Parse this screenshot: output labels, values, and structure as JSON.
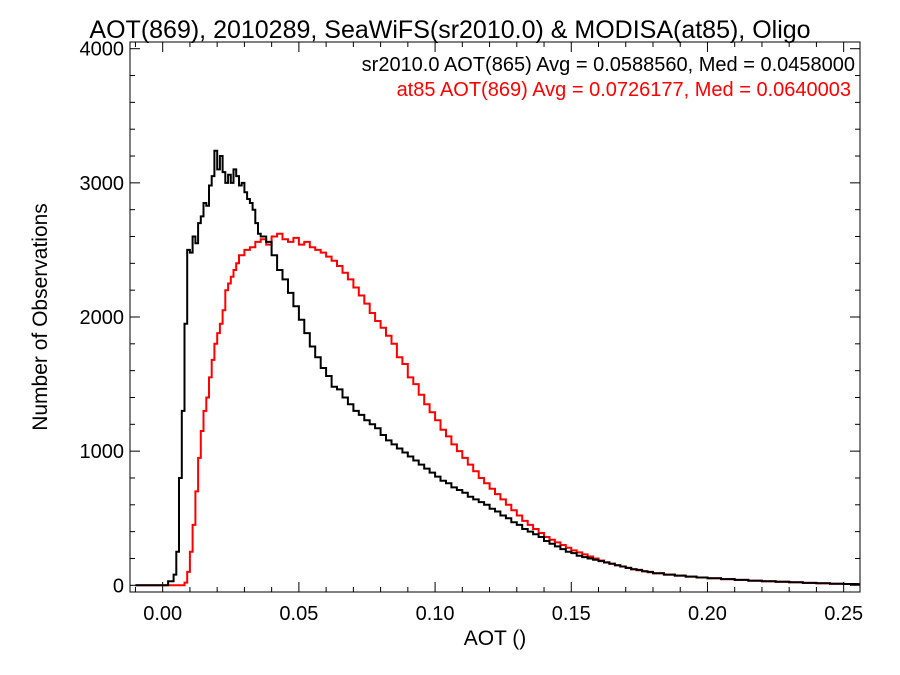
{
  "chart_data": {
    "type": "line",
    "title": "AOT(869), 2010289, SeaWiFS(sr2010.0) & MODISA(at85), Oligo",
    "xlabel": "AOT ()",
    "ylabel": "Number of Observations",
    "xlim": [
      -0.012,
      0.256
    ],
    "ylim": [
      -50,
      4050
    ],
    "x_ticks": [
      0.0,
      0.05,
      0.1,
      0.15,
      0.2,
      0.25
    ],
    "x_tick_labels": [
      "0.00",
      "0.05",
      "0.10",
      "0.15",
      "0.20",
      "0.25"
    ],
    "y_ticks": [
      0,
      1000,
      2000,
      3000,
      4000
    ],
    "y_tick_labels": [
      "0",
      "1000",
      "2000",
      "3000",
      "4000"
    ],
    "grid": false,
    "legend_placement": "top-right",
    "series": [
      {
        "name": "sr2010.0 AOT(865)",
        "legend_text": "sr2010.0 AOT(865) Avg = 0.0588560, Med = 0.0458000",
        "color": "#000000",
        "points": [
          [
            -0.01,
            0
          ],
          [
            0.0,
            0
          ],
          [
            0.002,
            30
          ],
          [
            0.004,
            80
          ],
          [
            0.005,
            250
          ],
          [
            0.006,
            800
          ],
          [
            0.007,
            1300
          ],
          [
            0.008,
            1950
          ],
          [
            0.009,
            2500
          ],
          [
            0.01,
            2480
          ],
          [
            0.011,
            2600
          ],
          [
            0.012,
            2550
          ],
          [
            0.013,
            2700
          ],
          [
            0.014,
            2750
          ],
          [
            0.015,
            2850
          ],
          [
            0.016,
            2830
          ],
          [
            0.017,
            2980
          ],
          [
            0.018,
            3050
          ],
          [
            0.019,
            3240
          ],
          [
            0.02,
            3100
          ],
          [
            0.021,
            3200
          ],
          [
            0.022,
            3080
          ],
          [
            0.023,
            3000
          ],
          [
            0.024,
            3060
          ],
          [
            0.025,
            3000
          ],
          [
            0.026,
            3100
          ],
          [
            0.027,
            3050
          ],
          [
            0.028,
            2980
          ],
          [
            0.029,
            3000
          ],
          [
            0.03,
            2930
          ],
          [
            0.031,
            2880
          ],
          [
            0.032,
            2850
          ],
          [
            0.033,
            2800
          ],
          [
            0.034,
            2700
          ],
          [
            0.035,
            2620
          ],
          [
            0.036,
            2600
          ],
          [
            0.038,
            2560
          ],
          [
            0.04,
            2460
          ],
          [
            0.042,
            2350
          ],
          [
            0.044,
            2280
          ],
          [
            0.046,
            2180
          ],
          [
            0.048,
            2080
          ],
          [
            0.05,
            1980
          ],
          [
            0.052,
            1880
          ],
          [
            0.054,
            1780
          ],
          [
            0.056,
            1700
          ],
          [
            0.058,
            1620
          ],
          [
            0.06,
            1560
          ],
          [
            0.062,
            1480
          ],
          [
            0.064,
            1460
          ],
          [
            0.066,
            1400
          ],
          [
            0.068,
            1350
          ],
          [
            0.07,
            1300
          ],
          [
            0.072,
            1270
          ],
          [
            0.074,
            1230
          ],
          [
            0.076,
            1200
          ],
          [
            0.078,
            1170
          ],
          [
            0.08,
            1120
          ],
          [
            0.082,
            1080
          ],
          [
            0.084,
            1050
          ],
          [
            0.086,
            1020
          ],
          [
            0.088,
            990
          ],
          [
            0.09,
            960
          ],
          [
            0.092,
            930
          ],
          [
            0.094,
            900
          ],
          [
            0.096,
            870
          ],
          [
            0.098,
            840
          ],
          [
            0.1,
            810
          ],
          [
            0.102,
            780
          ],
          [
            0.104,
            760
          ],
          [
            0.106,
            730
          ],
          [
            0.108,
            710
          ],
          [
            0.11,
            690
          ],
          [
            0.112,
            660
          ],
          [
            0.114,
            640
          ],
          [
            0.116,
            620
          ],
          [
            0.118,
            600
          ],
          [
            0.12,
            570
          ],
          [
            0.122,
            550
          ],
          [
            0.124,
            520
          ],
          [
            0.126,
            500
          ],
          [
            0.128,
            470
          ],
          [
            0.13,
            450
          ],
          [
            0.132,
            420
          ],
          [
            0.134,
            400
          ],
          [
            0.136,
            380
          ],
          [
            0.138,
            360
          ],
          [
            0.14,
            330
          ],
          [
            0.142,
            310
          ],
          [
            0.144,
            290
          ],
          [
            0.146,
            270
          ],
          [
            0.148,
            250
          ],
          [
            0.15,
            240
          ],
          [
            0.152,
            220
          ],
          [
            0.154,
            210
          ],
          [
            0.156,
            200
          ],
          [
            0.158,
            190
          ],
          [
            0.16,
            180
          ],
          [
            0.162,
            170
          ],
          [
            0.164,
            160
          ],
          [
            0.166,
            150
          ],
          [
            0.168,
            140
          ],
          [
            0.17,
            130
          ],
          [
            0.172,
            120
          ],
          [
            0.174,
            115
          ],
          [
            0.176,
            105
          ],
          [
            0.178,
            100
          ],
          [
            0.18,
            90
          ],
          [
            0.184,
            80
          ],
          [
            0.188,
            72
          ],
          [
            0.192,
            65
          ],
          [
            0.196,
            58
          ],
          [
            0.2,
            52
          ],
          [
            0.205,
            46
          ],
          [
            0.21,
            40
          ],
          [
            0.215,
            34
          ],
          [
            0.22,
            30
          ],
          [
            0.225,
            26
          ],
          [
            0.23,
            22
          ],
          [
            0.235,
            18
          ],
          [
            0.24,
            15
          ],
          [
            0.245,
            12
          ],
          [
            0.25,
            10
          ],
          [
            0.255,
            8
          ]
        ]
      },
      {
        "name": "at85 AOT(869)",
        "legend_text": "at85 AOT(869) Avg = 0.0726177, Med = 0.0640003",
        "color": "#ff0000",
        "points": [
          [
            -0.01,
            0
          ],
          [
            0.006,
            0
          ],
          [
            0.008,
            20
          ],
          [
            0.009,
            100
          ],
          [
            0.01,
            250
          ],
          [
            0.011,
            450
          ],
          [
            0.012,
            700
          ],
          [
            0.013,
            950
          ],
          [
            0.014,
            1150
          ],
          [
            0.015,
            1300
          ],
          [
            0.016,
            1400
          ],
          [
            0.017,
            1550
          ],
          [
            0.018,
            1680
          ],
          [
            0.019,
            1800
          ],
          [
            0.02,
            1880
          ],
          [
            0.021,
            1950
          ],
          [
            0.022,
            2050
          ],
          [
            0.023,
            2200
          ],
          [
            0.024,
            2250
          ],
          [
            0.025,
            2300
          ],
          [
            0.026,
            2350
          ],
          [
            0.027,
            2400
          ],
          [
            0.028,
            2460
          ],
          [
            0.03,
            2500
          ],
          [
            0.032,
            2520
          ],
          [
            0.034,
            2560
          ],
          [
            0.036,
            2580
          ],
          [
            0.038,
            2540
          ],
          [
            0.04,
            2600
          ],
          [
            0.042,
            2620
          ],
          [
            0.044,
            2580
          ],
          [
            0.046,
            2560
          ],
          [
            0.048,
            2590
          ],
          [
            0.05,
            2540
          ],
          [
            0.052,
            2560
          ],
          [
            0.054,
            2520
          ],
          [
            0.056,
            2500
          ],
          [
            0.058,
            2480
          ],
          [
            0.06,
            2450
          ],
          [
            0.062,
            2420
          ],
          [
            0.064,
            2380
          ],
          [
            0.066,
            2330
          ],
          [
            0.068,
            2280
          ],
          [
            0.07,
            2220
          ],
          [
            0.072,
            2160
          ],
          [
            0.074,
            2100
          ],
          [
            0.076,
            2030
          ],
          [
            0.078,
            1970
          ],
          [
            0.08,
            1920
          ],
          [
            0.082,
            1860
          ],
          [
            0.084,
            1800
          ],
          [
            0.086,
            1700
          ],
          [
            0.088,
            1650
          ],
          [
            0.09,
            1550
          ],
          [
            0.092,
            1500
          ],
          [
            0.094,
            1420
          ],
          [
            0.096,
            1350
          ],
          [
            0.098,
            1290
          ],
          [
            0.1,
            1230
          ],
          [
            0.102,
            1160
          ],
          [
            0.104,
            1110
          ],
          [
            0.106,
            1050
          ],
          [
            0.108,
            1000
          ],
          [
            0.11,
            950
          ],
          [
            0.112,
            900
          ],
          [
            0.114,
            850
          ],
          [
            0.116,
            800
          ],
          [
            0.118,
            760
          ],
          [
            0.12,
            720
          ],
          [
            0.122,
            680
          ],
          [
            0.124,
            640
          ],
          [
            0.126,
            600
          ],
          [
            0.128,
            560
          ],
          [
            0.13,
            520
          ],
          [
            0.132,
            480
          ],
          [
            0.134,
            450
          ],
          [
            0.136,
            420
          ],
          [
            0.138,
            390
          ],
          [
            0.14,
            360
          ],
          [
            0.142,
            340
          ],
          [
            0.144,
            320
          ],
          [
            0.146,
            300
          ],
          [
            0.148,
            280
          ],
          [
            0.15,
            260
          ],
          [
            0.152,
            245
          ],
          [
            0.154,
            230
          ],
          [
            0.156,
            215
          ],
          [
            0.158,
            200
          ],
          [
            0.16,
            185
          ],
          [
            0.162,
            172
          ],
          [
            0.164,
            160
          ],
          [
            0.166,
            150
          ],
          [
            0.168,
            140
          ],
          [
            0.17,
            130
          ],
          [
            0.172,
            120
          ],
          [
            0.174,
            112
          ],
          [
            0.176,
            105
          ],
          [
            0.178,
            97
          ],
          [
            0.18,
            90
          ],
          [
            0.184,
            80
          ],
          [
            0.188,
            72
          ],
          [
            0.192,
            65
          ],
          [
            0.196,
            58
          ],
          [
            0.2,
            52
          ],
          [
            0.205,
            46
          ],
          [
            0.21,
            40
          ],
          [
            0.215,
            35
          ],
          [
            0.22,
            30
          ],
          [
            0.225,
            26
          ],
          [
            0.23,
            22
          ],
          [
            0.235,
            18
          ],
          [
            0.24,
            15
          ],
          [
            0.245,
            12
          ],
          [
            0.25,
            10
          ],
          [
            0.255,
            8
          ]
        ]
      }
    ]
  }
}
